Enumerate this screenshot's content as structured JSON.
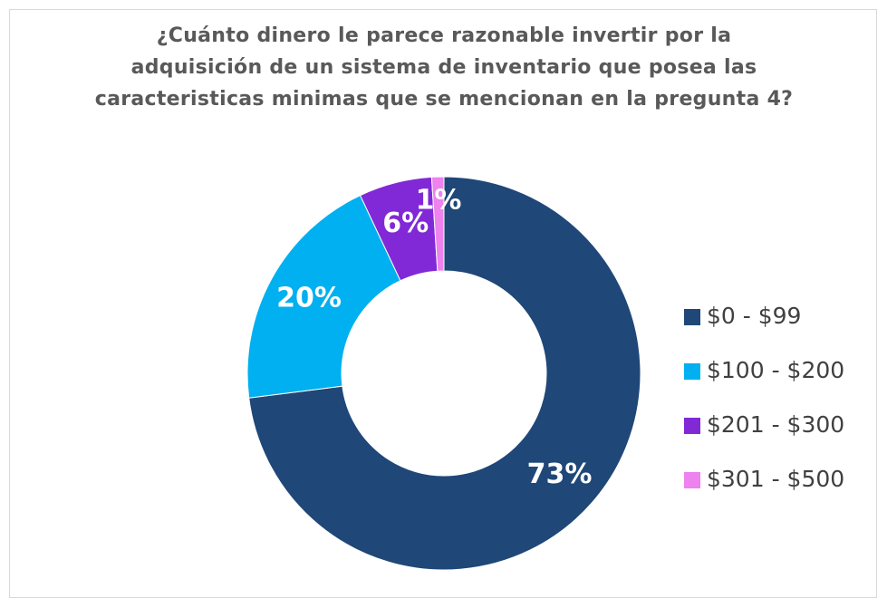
{
  "chart_data": {
    "type": "donut",
    "title": "¿Cuánto dinero le parece razonable invertir por la adquisición de un sistema de inventario que posea las caracteristicas minimas que se mencionan en la pregunta 4?",
    "categories": [
      "$0 - $99",
      "$100 - $200",
      "$201 - $300",
      "$301 - $500"
    ],
    "values": [
      73,
      20,
      6,
      1
    ],
    "value_labels": [
      "73%",
      "20%",
      "6%",
      "1%"
    ],
    "colors": [
      "#1f4778",
      "#00b0f0",
      "#8129d6",
      "#ee82ee"
    ],
    "legend": "right"
  }
}
